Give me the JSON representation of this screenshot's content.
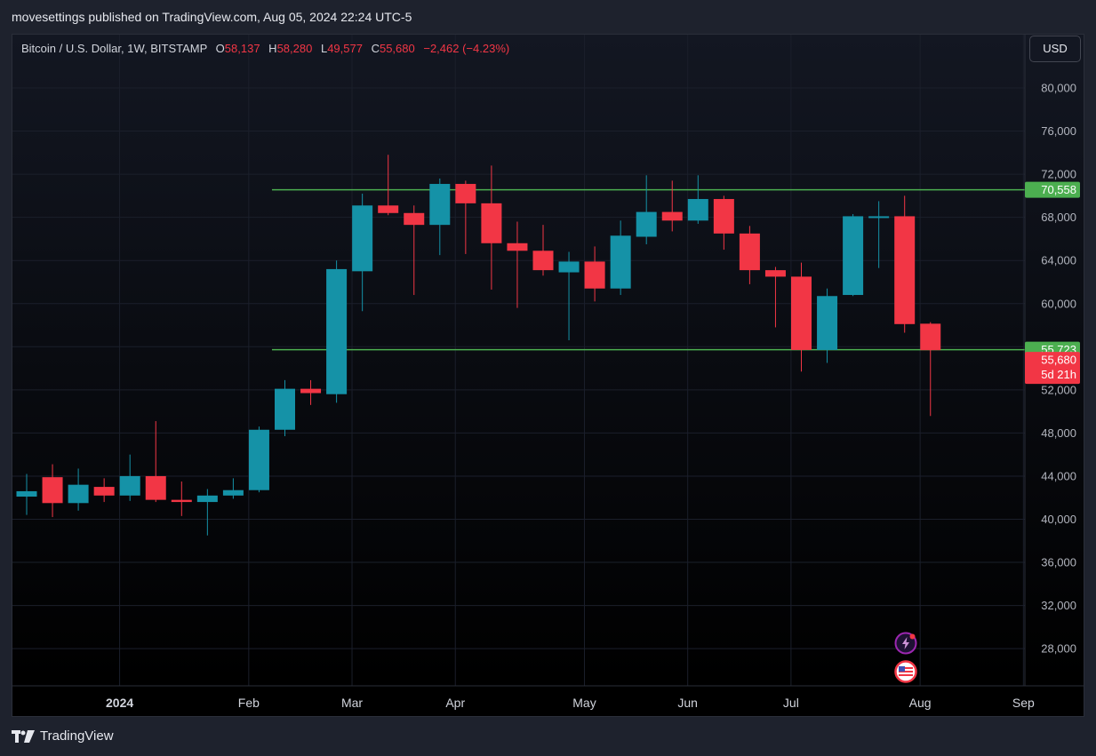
{
  "header": {
    "publish_text": "movesettings published on TradingView.com, Aug 05, 2024 22:24 UTC-5"
  },
  "legend": {
    "symbol": "Bitcoin / U.S. Dollar, 1W, BITSTAMP",
    "open_label": "O",
    "open": "58,137",
    "high_label": "H",
    "high": "58,280",
    "low_label": "L",
    "low": "49,577",
    "close_label": "C",
    "close": "55,680",
    "change": "−2,462 (−4.23%)"
  },
  "currency_button": "USD",
  "footer": {
    "brand": "TradingView"
  },
  "colors": {
    "up": "#1592a7",
    "down": "#f23645",
    "level": "#4caf50",
    "background": "#131722"
  },
  "icons": [
    "bolt-alert-icon",
    "us-flag-icon",
    "tradingview-logo-icon"
  ],
  "chart_data": {
    "type": "candlestick",
    "interval": "1W",
    "ylim": [
      24000,
      82000
    ],
    "y_ticks": [
      28000,
      32000,
      36000,
      40000,
      44000,
      48000,
      52000,
      56000,
      60000,
      64000,
      68000,
      72000,
      76000,
      80000
    ],
    "y_tick_labels": [
      "28,000",
      "32,000",
      "36,000",
      "40,000",
      "44,000",
      "48,000",
      "52,000",
      "56,000",
      "60,000",
      "64,000",
      "68,000",
      "72,000",
      "76,000",
      "80,000"
    ],
    "x_labels": [
      {
        "label": "2024",
        "index": 3.6
      },
      {
        "label": "Feb",
        "index": 8.6
      },
      {
        "label": "Mar",
        "index": 12.6
      },
      {
        "label": "Apr",
        "index": 16.6
      },
      {
        "label": "May",
        "index": 21.6
      },
      {
        "label": "Jun",
        "index": 25.6
      },
      {
        "label": "Jul",
        "index": 29.6
      },
      {
        "label": "Aug",
        "index": 34.6
      },
      {
        "label": "Sep",
        "index": 38.6
      }
    ],
    "candles": [
      {
        "o": 42100,
        "h": 44200,
        "l": 40400,
        "c": 42600
      },
      {
        "o": 43900,
        "h": 45100,
        "l": 40200,
        "c": 41500
      },
      {
        "o": 41500,
        "h": 44700,
        "l": 40800,
        "c": 43200
      },
      {
        "o": 43000,
        "h": 43800,
        "l": 41600,
        "c": 42200
      },
      {
        "o": 42200,
        "h": 46000,
        "l": 41700,
        "c": 44000
      },
      {
        "o": 44000,
        "h": 49100,
        "l": 41600,
        "c": 41800
      },
      {
        "o": 41800,
        "h": 43500,
        "l": 40300,
        "c": 41600
      },
      {
        "o": 41600,
        "h": 42800,
        "l": 38500,
        "c": 42200
      },
      {
        "o": 42200,
        "h": 43800,
        "l": 41900,
        "c": 42700
      },
      {
        "o": 42700,
        "h": 48600,
        "l": 42500,
        "c": 48300
      },
      {
        "o": 48300,
        "h": 52900,
        "l": 47700,
        "c": 52100
      },
      {
        "o": 52100,
        "h": 52900,
        "l": 50600,
        "c": 51700
      },
      {
        "o": 51600,
        "h": 64000,
        "l": 50800,
        "c": 63200
      },
      {
        "o": 63000,
        "h": 70200,
        "l": 59300,
        "c": 69100
      },
      {
        "o": 69100,
        "h": 73800,
        "l": 68200,
        "c": 68400
      },
      {
        "o": 68400,
        "h": 69100,
        "l": 60800,
        "c": 67300
      },
      {
        "o": 67300,
        "h": 71600,
        "l": 64500,
        "c": 71100
      },
      {
        "o": 71100,
        "h": 71400,
        "l": 64600,
        "c": 69300
      },
      {
        "o": 69300,
        "h": 72800,
        "l": 61300,
        "c": 65600
      },
      {
        "o": 65600,
        "h": 67600,
        "l": 59600,
        "c": 64900
      },
      {
        "o": 64900,
        "h": 67300,
        "l": 62600,
        "c": 63100
      },
      {
        "o": 62900,
        "h": 64800,
        "l": 56600,
        "c": 63900
      },
      {
        "o": 63900,
        "h": 65300,
        "l": 60200,
        "c": 61400
      },
      {
        "o": 61400,
        "h": 67700,
        "l": 60800,
        "c": 66300
      },
      {
        "o": 66200,
        "h": 71900,
        "l": 65500,
        "c": 68500
      },
      {
        "o": 68500,
        "h": 71400,
        "l": 66700,
        "c": 67700
      },
      {
        "o": 67700,
        "h": 71900,
        "l": 67400,
        "c": 69700
      },
      {
        "o": 69700,
        "h": 70000,
        "l": 65000,
        "c": 66500
      },
      {
        "o": 66500,
        "h": 67200,
        "l": 61800,
        "c": 63100
      },
      {
        "o": 63100,
        "h": 63400,
        "l": 57800,
        "c": 62500
      },
      {
        "o": 62500,
        "h": 63800,
        "l": 53700,
        "c": 55700
      },
      {
        "o": 55700,
        "h": 61400,
        "l": 54500,
        "c": 60700
      },
      {
        "o": 60800,
        "h": 68300,
        "l": 60700,
        "c": 68100
      },
      {
        "o": 68000,
        "h": 69500,
        "l": 63300,
        "c": 68100
      },
      {
        "o": 68100,
        "h": 70000,
        "l": 57300,
        "c": 58100
      },
      {
        "o": 58137,
        "h": 58280,
        "l": 49577,
        "c": 55680
      }
    ],
    "levels": [
      {
        "value": 70558,
        "label": "70,558"
      },
      {
        "value": 55723,
        "label": "55,723"
      }
    ],
    "last_price": {
      "value": 55680,
      "label": "55,680",
      "countdown": "5d 21h"
    }
  }
}
